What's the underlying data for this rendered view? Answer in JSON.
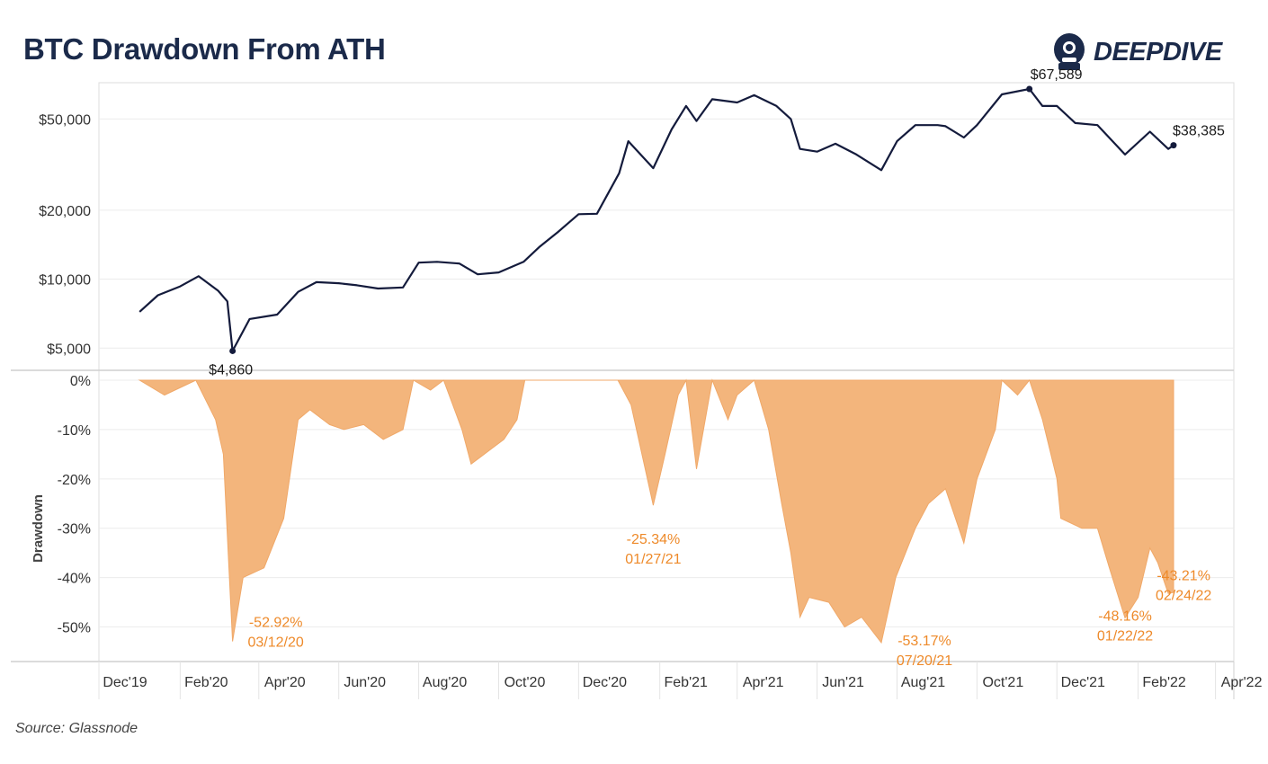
{
  "header": {
    "title": "BTC Drawdown From ATH",
    "brand_name": "DEEPDIVE",
    "brand_icon": "diver-helmet-icon",
    "source": "Source: Glassnode"
  },
  "colors": {
    "price_line": "#141b3c",
    "drawdown_fill": "#f3b57c",
    "drawdown_stroke": "#f0a868",
    "annotation": "#ee8a2a",
    "grid": "#ececec",
    "axis_text": "#333333"
  },
  "chart_data": [
    {
      "type": "line",
      "ylabel": "",
      "yscale": "log",
      "ylim": [
        4000,
        72000
      ],
      "y_ticks": [
        5000,
        10000,
        20000,
        50000
      ],
      "y_tick_labels": [
        "$5,000",
        "$10,000",
        "$20,000",
        "$50,000"
      ],
      "grid": true,
      "series": [
        {
          "x": [
            "2020-01-01",
            "2020-01-15",
            "2020-02-01",
            "2020-02-15",
            "2020-03-01",
            "2020-03-08",
            "2020-03-12",
            "2020-03-25",
            "2020-04-15",
            "2020-05-01",
            "2020-05-15",
            "2020-06-01",
            "2020-06-15",
            "2020-07-01",
            "2020-07-20",
            "2020-08-01",
            "2020-08-15",
            "2020-09-01",
            "2020-09-15",
            "2020-10-01",
            "2020-10-20",
            "2020-11-01",
            "2020-11-15",
            "2020-12-01",
            "2020-12-15",
            "2021-01-01",
            "2021-01-08",
            "2021-01-27",
            "2021-02-10",
            "2021-02-21",
            "2021-03-01",
            "2021-03-13",
            "2021-04-01",
            "2021-04-14",
            "2021-05-01",
            "2021-05-12",
            "2021-05-19",
            "2021-06-01",
            "2021-06-15",
            "2021-07-01",
            "2021-07-20",
            "2021-08-01",
            "2021-08-15",
            "2021-09-01",
            "2021-09-07",
            "2021-09-21",
            "2021-10-01",
            "2021-10-20",
            "2021-11-10",
            "2021-11-20",
            "2021-12-01",
            "2021-12-15",
            "2022-01-01",
            "2022-01-22",
            "2022-02-10",
            "2022-02-24",
            "2022-02-28"
          ],
          "y": [
            7200,
            8500,
            9300,
            10300,
            8900,
            8000,
            4860,
            6700,
            7000,
            8800,
            9700,
            9600,
            9400,
            9100,
            9200,
            11800,
            11900,
            11700,
            10500,
            10700,
            11900,
            13800,
            16000,
            19200,
            19300,
            29000,
            40000,
            30500,
            45000,
            57000,
            49000,
            61000,
            59000,
            63500,
            57000,
            50000,
            37000,
            36000,
            39000,
            35000,
            29900,
            40000,
            47000,
            47000,
            46500,
            41500,
            47000,
            64000,
            67589,
            57000,
            57000,
            48000,
            47000,
            35000,
            44000,
            37000,
            38385
          ]
        }
      ],
      "annotations": [
        {
          "text": "$4,860"
        },
        {
          "text": "$67,589"
        },
        {
          "text": "$38,385"
        }
      ]
    },
    {
      "type": "area",
      "ylabel": "Drawdown",
      "ylim": [
        -57,
        2
      ],
      "y_ticks": [
        0,
        -10,
        -20,
        -30,
        -40,
        -50
      ],
      "y_tick_labels": [
        "0%",
        "-10%",
        "-20%",
        "-30%",
        "-40%",
        "-50%"
      ],
      "grid": true,
      "series": [
        {
          "x": [
            "2020-01-01",
            "2020-01-20",
            "2020-02-05",
            "2020-02-13",
            "2020-02-28",
            "2020-03-05",
            "2020-03-12",
            "2020-03-20",
            "2020-04-05",
            "2020-04-20",
            "2020-05-01",
            "2020-05-10",
            "2020-05-25",
            "2020-06-05",
            "2020-06-20",
            "2020-07-05",
            "2020-07-20",
            "2020-07-28",
            "2020-08-10",
            "2020-08-20",
            "2020-09-03",
            "2020-09-10",
            "2020-09-25",
            "2020-10-05",
            "2020-10-15",
            "2020-10-21",
            "2020-11-05",
            "2020-11-20",
            "2020-12-01",
            "2020-12-15",
            "2020-12-31",
            "2021-01-10",
            "2021-01-27",
            "2021-02-05",
            "2021-02-15",
            "2021-02-21",
            "2021-03-01",
            "2021-03-13",
            "2021-03-25",
            "2021-04-01",
            "2021-04-14",
            "2021-04-25",
            "2021-05-05",
            "2021-05-12",
            "2021-05-19",
            "2021-05-26",
            "2021-06-10",
            "2021-06-22",
            "2021-07-05",
            "2021-07-20",
            "2021-07-31",
            "2021-08-15",
            "2021-08-25",
            "2021-09-07",
            "2021-09-21",
            "2021-10-01",
            "2021-10-15",
            "2021-10-20",
            "2021-11-01",
            "2021-11-10",
            "2021-11-20",
            "2021-12-01",
            "2021-12-04",
            "2021-12-20",
            "2022-01-01",
            "2022-01-10",
            "2022-01-22",
            "2022-02-01",
            "2022-02-10",
            "2022-02-16",
            "2022-02-24",
            "2022-02-28"
          ],
          "y": [
            0,
            -3,
            -1,
            0,
            -8,
            -15,
            -52.92,
            -40,
            -38,
            -28,
            -8,
            -6,
            -9,
            -10,
            -9,
            -12,
            -10,
            0,
            -2,
            0,
            -10,
            -17,
            -14,
            -12,
            -8,
            0,
            0,
            0,
            0,
            0,
            0,
            -5,
            -25.34,
            -15,
            -3,
            0,
            -18,
            0,
            -8,
            -3,
            0,
            -10,
            -25,
            -35,
            -48,
            -44,
            -45,
            -50,
            -48,
            -53.17,
            -40,
            -30,
            -25,
            -22,
            -33,
            -20,
            -10,
            0,
            -3,
            0,
            -8,
            -20,
            -28,
            -30,
            -30,
            -38,
            -48.16,
            -44,
            -34,
            -37,
            -43.21,
            -43
          ]
        }
      ],
      "annotations": [
        {
          "text": "-52.92%",
          "date": "03/12/20"
        },
        {
          "text": "-25.34%",
          "date": "01/27/21"
        },
        {
          "text": "-53.17%",
          "date": "07/20/21"
        },
        {
          "text": "-48.16%",
          "date": "01/22/22"
        },
        {
          "text": "-43.21%",
          "date": "02/24/22"
        }
      ]
    }
  ],
  "x_axis": {
    "ticks": [
      "2019-12-01",
      "2020-02-01",
      "2020-04-01",
      "2020-06-01",
      "2020-08-01",
      "2020-10-01",
      "2020-12-01",
      "2021-02-01",
      "2021-04-01",
      "2021-06-01",
      "2021-08-01",
      "2021-10-01",
      "2021-12-01",
      "2022-02-01",
      "2022-04-01"
    ],
    "tick_labels": [
      "Dec'19",
      "Feb'20",
      "Apr'20",
      "Jun'20",
      "Aug'20",
      "Oct'20",
      "Dec'20",
      "Feb'21",
      "Apr'21",
      "Jun'21",
      "Aug'21",
      "Oct'21",
      "Dec'21",
      "Feb'22",
      "Apr'22"
    ],
    "range": [
      "2019-12-01",
      "2022-04-15"
    ]
  }
}
